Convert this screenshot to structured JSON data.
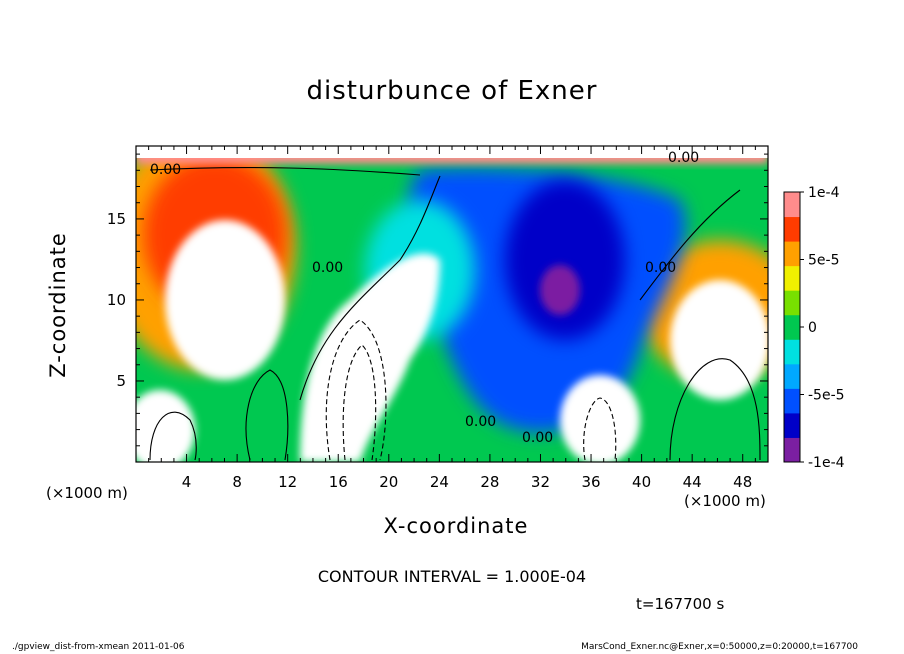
{
  "title": "disturbunce of Exner",
  "xlabel": "X-coordinate",
  "ylabel": "Z-coordinate",
  "x_unit": "(×1000 m)",
  "y_unit": "(×1000 m)",
  "contour_interval": "CONTOUR INTERVAL = 1.000E-04",
  "time_label": "t=167700 s",
  "footer_left": "./gpview_dist-from-xmean  2011-01-06",
  "footer_right": "MarsCond_Exner.nc@Exner,x=0:50000,z=0:20000,t=167700",
  "chart_data": {
    "type": "heatmap",
    "title": "disturbunce of Exner",
    "xlabel": "X-coordinate",
    "ylabel": "Z-coordinate",
    "xlim": [
      0,
      50
    ],
    "ylim": [
      0,
      19.5
    ],
    "x_ticks": [
      4,
      8,
      12,
      16,
      20,
      24,
      28,
      32,
      36,
      40,
      44,
      48
    ],
    "y_ticks": [
      5,
      10,
      15
    ],
    "colorbar": {
      "range": [
        -0.0001,
        0.0001
      ],
      "tick_labels": [
        "1e-4",
        "5e-5",
        "0",
        "-5e-5",
        "-1e-4"
      ],
      "tick_values": [
        0.0001,
        5e-05,
        0,
        -5e-05,
        -0.0001
      ],
      "colormap": [
        "#7b1fa2",
        "#0000c8",
        "#0050ff",
        "#00a8ff",
        "#00e0e0",
        "#00c850",
        "#78e000",
        "#f0f000",
        "#ffa000",
        "#ff3c00",
        "#ff8c8c"
      ]
    },
    "contour_labels": [
      "0.00",
      "0.00",
      "0.00",
      "0.00",
      "0.00",
      "0.00"
    ],
    "contour_interval": 0.0001,
    "grid": false,
    "time_s": 167700
  }
}
